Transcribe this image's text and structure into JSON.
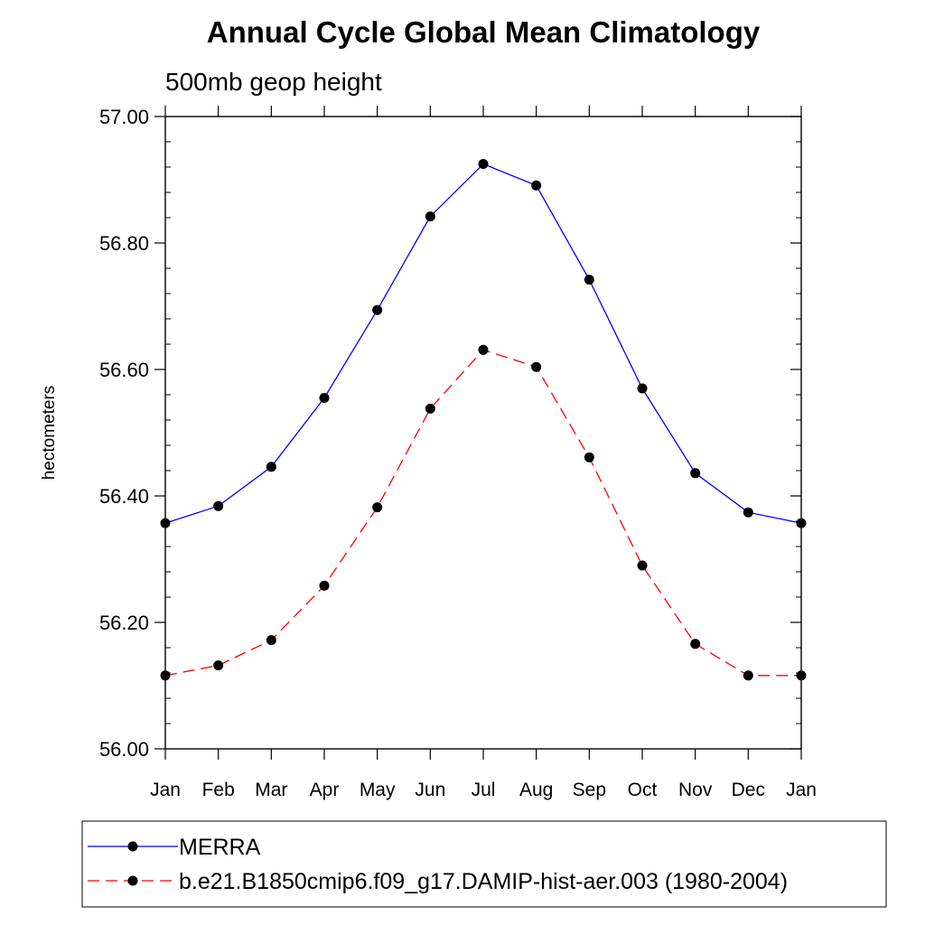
{
  "chart_data": {
    "type": "line",
    "title": "Annual Cycle Global Mean Climatology",
    "subtitle": "500mb geop height",
    "ylabel": "hectometers",
    "categories": [
      "Jan",
      "Feb",
      "Mar",
      "Apr",
      "May",
      "Jun",
      "Jul",
      "Aug",
      "Sep",
      "Oct",
      "Nov",
      "Dec",
      "Jan"
    ],
    "ylim": [
      56.0,
      57.0
    ],
    "yticks": [
      "56.00",
      "56.20",
      "56.40",
      "56.60",
      "56.80",
      "57.00"
    ],
    "series": [
      {
        "name": "MERRA",
        "color": "#0000ff",
        "style": "solid",
        "values": [
          56.357,
          56.384,
          56.446,
          56.555,
          56.694,
          56.842,
          56.925,
          56.891,
          56.742,
          56.57,
          56.436,
          56.374,
          56.357
        ]
      },
      {
        "name": "b.e21.B1850cmip6.f09_g17.DAMIP-hist-aer.003 (1980-2004)",
        "color": "#ff0000",
        "style": "dashed",
        "values": [
          56.116,
          56.132,
          56.172,
          56.258,
          56.382,
          56.538,
          56.631,
          56.604,
          56.461,
          56.29,
          56.166,
          56.116,
          56.116
        ]
      }
    ],
    "legend_position": "bottom",
    "grid": false
  }
}
